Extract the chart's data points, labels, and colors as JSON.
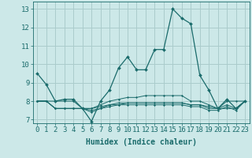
{
  "title": "",
  "xlabel": "Humidex (Indice chaleur)",
  "ylabel": "",
  "xlim": [
    -0.5,
    23.5
  ],
  "ylim": [
    6.8,
    13.4
  ],
  "xticks": [
    0,
    1,
    2,
    3,
    4,
    5,
    6,
    7,
    8,
    9,
    10,
    11,
    12,
    13,
    14,
    15,
    16,
    17,
    18,
    19,
    20,
    21,
    22,
    23
  ],
  "yticks": [
    7,
    8,
    9,
    10,
    11,
    12,
    13
  ],
  "bg_color": "#cce8e8",
  "grid_color": "#aacccc",
  "line_color": "#1a6b6b",
  "lines": [
    [
      9.5,
      8.9,
      8.0,
      8.1,
      8.1,
      7.6,
      6.9,
      8.0,
      8.6,
      9.8,
      10.4,
      9.7,
      9.7,
      10.8,
      10.8,
      13.0,
      12.5,
      12.2,
      9.4,
      8.6,
      7.6,
      8.1,
      7.6,
      8.0
    ],
    [
      8.0,
      8.0,
      8.0,
      8.0,
      8.0,
      7.6,
      7.6,
      7.8,
      8.0,
      8.1,
      8.2,
      8.2,
      8.3,
      8.3,
      8.3,
      8.3,
      8.3,
      8.0,
      8.0,
      7.8,
      7.6,
      8.0,
      8.0,
      8.0
    ],
    [
      8.0,
      8.0,
      7.6,
      7.6,
      7.6,
      7.6,
      7.4,
      7.6,
      7.8,
      7.8,
      7.9,
      7.9,
      7.9,
      7.9,
      7.9,
      7.9,
      7.9,
      7.8,
      7.8,
      7.6,
      7.6,
      7.6,
      7.6,
      8.0
    ],
    [
      8.0,
      8.0,
      7.6,
      7.6,
      7.6,
      7.6,
      7.5,
      7.6,
      7.7,
      7.8,
      7.8,
      7.8,
      7.8,
      7.8,
      7.8,
      7.8,
      7.8,
      7.7,
      7.7,
      7.5,
      7.5,
      7.7,
      7.5,
      8.0
    ],
    [
      8.0,
      8.0,
      7.6,
      7.6,
      7.6,
      7.6,
      7.6,
      7.7,
      7.8,
      7.9,
      7.9,
      7.9,
      7.9,
      7.9,
      7.9,
      7.9,
      7.9,
      7.8,
      7.8,
      7.7,
      7.6,
      7.8,
      7.6,
      8.0
    ]
  ],
  "fontsize_label": 7,
  "fontsize_tick": 6.5
}
